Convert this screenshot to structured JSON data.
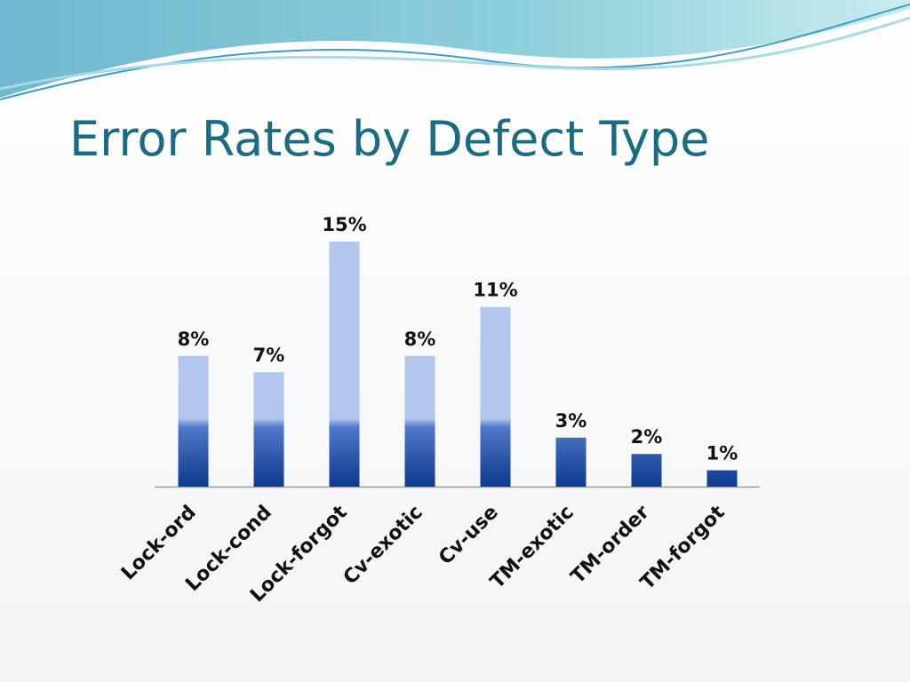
{
  "chart_data": {
    "type": "bar",
    "title": "Error Rates by Defect Type",
    "categories": [
      "Lock-ord",
      "Lock-cond",
      "Lock-forgot",
      "Cv-exotic",
      "Cv-use",
      "TM-exotic",
      "TM-order",
      "TM-forgot"
    ],
    "values": [
      8,
      7,
      15,
      8,
      11,
      3,
      2,
      1
    ],
    "value_labels": [
      "8%",
      "7%",
      "15%",
      "8%",
      "11%",
      "3%",
      "2%",
      "1%"
    ],
    "color": "#b3c6ee"
  }
}
